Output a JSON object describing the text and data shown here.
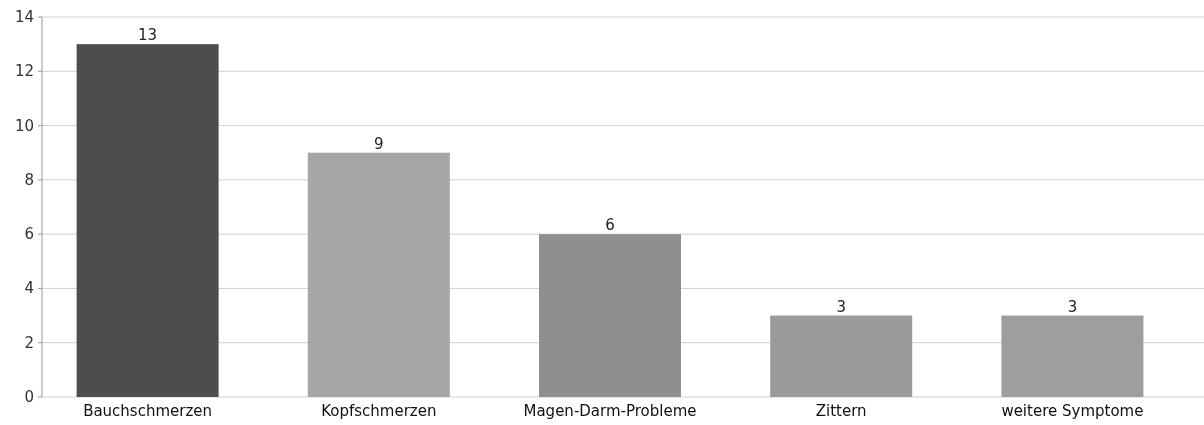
{
  "chart_data": {
    "type": "bar",
    "categories": [
      "Bauchschmerzen",
      "Kopfschmerzen",
      "Magen-Darm-Probleme",
      "Zittern",
      "weitere Symptome"
    ],
    "values": [
      13,
      9,
      6,
      3,
      3
    ],
    "colors": [
      "#4d4d4d",
      "#a6a6a6",
      "#8f8f8f",
      "#9a9a9a",
      "#9e9e9e"
    ],
    "ylim": [
      0,
      14
    ],
    "yticks": [
      0,
      2,
      4,
      6,
      8,
      10,
      12,
      14
    ],
    "grid": "y",
    "data_labels": true
  }
}
